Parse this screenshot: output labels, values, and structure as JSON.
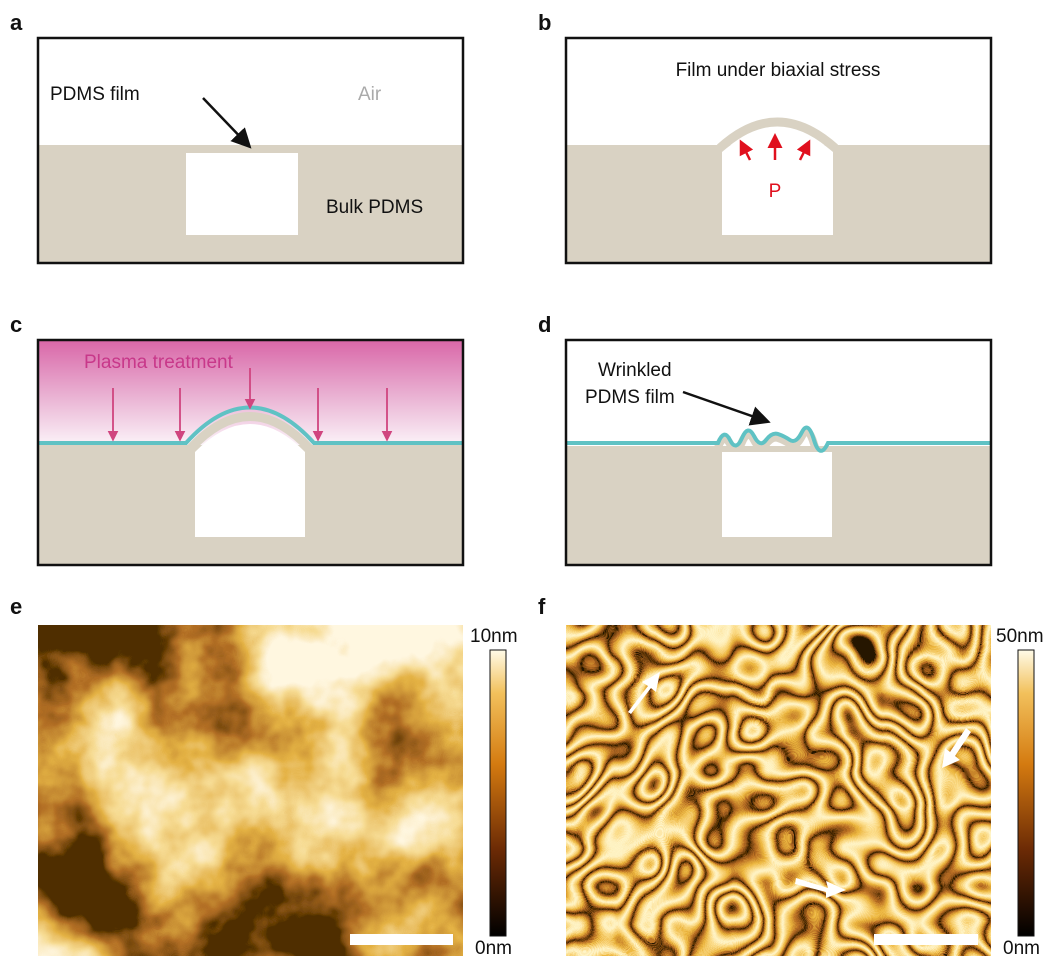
{
  "panel_a": {
    "label": "a",
    "film_label": "PDMS film",
    "air_label": "Air",
    "bulk_label": "Bulk PDMS"
  },
  "panel_b": {
    "label": "b",
    "caption": "Film under biaxial stress",
    "pressure_label": "P"
  },
  "panel_c": {
    "label": "c",
    "caption": "Plasma treatment"
  },
  "panel_d": {
    "label": "d",
    "caption_lines": [
      "Wrinkled",
      "PDMS film"
    ]
  },
  "panel_e": {
    "label": "e",
    "colorbar_max": "10nm",
    "colorbar_min": "0nm"
  },
  "panel_f": {
    "label": "f",
    "colorbar_max": "50nm",
    "colorbar_min": "0nm"
  }
}
